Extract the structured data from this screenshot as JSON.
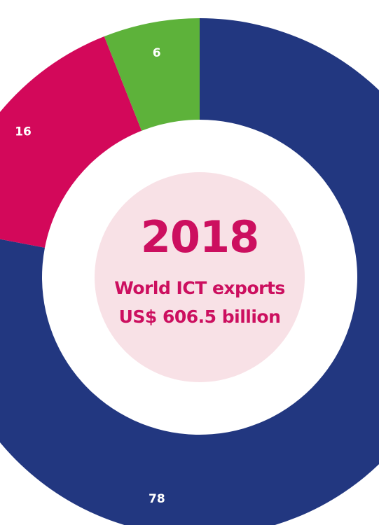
{
  "center": {
    "year": "2018",
    "line1": "World ICT exports",
    "line2": "US$ 606.5 billion",
    "text_color": "#cc0f5f",
    "disc_color": "#f8e1e6"
  },
  "chart_data": {
    "type": "pie",
    "style": "donut",
    "categories": [
      "",
      "",
      ""
    ],
    "values": [
      78,
      16,
      6
    ],
    "labels": [
      "78",
      "16",
      "6"
    ],
    "colors": [
      "#223780",
      "#d3085a",
      "#5db23a"
    ],
    "start": "12 o'clock",
    "direction": "clockwise",
    "legend": "none"
  }
}
